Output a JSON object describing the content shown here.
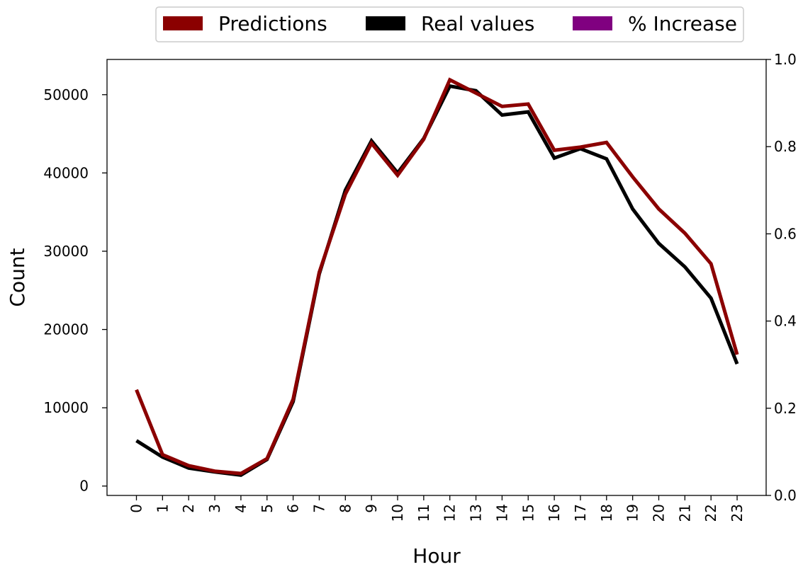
{
  "chart_data": {
    "type": "line",
    "title": "",
    "xlabel": "Hour",
    "ylabel": "Count",
    "categories": [
      "0",
      "1",
      "2",
      "3",
      "4",
      "5",
      "6",
      "7",
      "8",
      "9",
      "10",
      "11",
      "12",
      "13",
      "14",
      "15",
      "16",
      "17",
      "18",
      "19",
      "20",
      "21",
      "22",
      "23"
    ],
    "series": [
      {
        "name": "Predictions",
        "color": "#8b0000",
        "values": [
          12300,
          4000,
          2600,
          1900,
          1600,
          3500,
          11100,
          27300,
          37300,
          43800,
          39700,
          44300,
          51900,
          50200,
          48500,
          48800,
          42900,
          43300,
          43900,
          39500,
          35400,
          32300,
          28400,
          16800
        ]
      },
      {
        "name": "Real values",
        "color": "#000000",
        "values": [
          5800,
          3700,
          2300,
          1800,
          1400,
          3400,
          10800,
          27100,
          37800,
          44100,
          40000,
          44400,
          51100,
          50500,
          47400,
          47800,
          41900,
          43100,
          41800,
          35400,
          31000,
          28000,
          24000,
          15600
        ]
      }
    ],
    "legend": {
      "position": "top-center",
      "entries": [
        {
          "label": "Predictions",
          "color": "#8b0000"
        },
        {
          "label": "Real values",
          "color": "#000000"
        },
        {
          "label": "% Increase",
          "color": "#800080"
        }
      ]
    },
    "y_left": {
      "range": [
        -1200,
        54500
      ],
      "ticks": [
        0,
        10000,
        20000,
        30000,
        40000,
        50000
      ],
      "tick_labels": [
        "0",
        "10000",
        "20000",
        "30000",
        "40000",
        "50000"
      ]
    },
    "y_right": {
      "range": [
        0.0,
        1.0
      ],
      "ticks": [
        0.0,
        0.2,
        0.4,
        0.6,
        0.8,
        1.0
      ],
      "tick_labels": [
        "0.0",
        "0.2",
        "0.4",
        "0.6",
        "0.8",
        "1.0"
      ]
    },
    "grid": false
  }
}
